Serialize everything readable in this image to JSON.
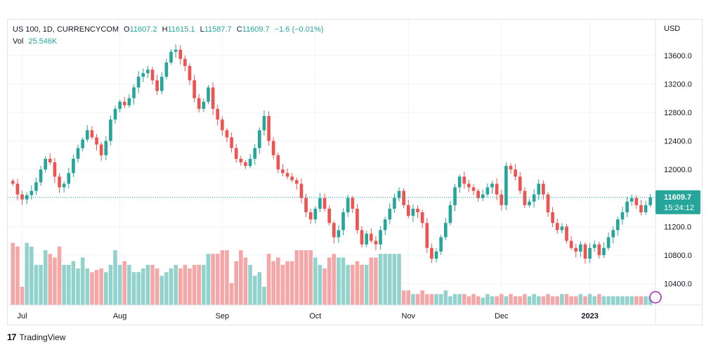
{
  "legend": {
    "symbol": "US 100, 1D, CURRENCYCOM",
    "open_label": "O",
    "open": "11607.2",
    "high_label": "H",
    "high": "11615.1",
    "low_label": "L",
    "low": "11587.7",
    "close_label": "C",
    "close": "11609.7",
    "change": "−1.6 (−0.01%)",
    "vol_label": "Vol",
    "vol": "25.546K"
  },
  "price_tag": {
    "price": "11609.7",
    "countdown": "15:24:12"
  },
  "branding": {
    "name": "TradingView"
  },
  "colors": {
    "up": "#26a69a",
    "down": "#ef5350",
    "up_vol": "#92d2cc",
    "down_vol": "#f5a6a6",
    "grid": "#f0f3fa",
    "axis_text": "#131722"
  },
  "chart_data": {
    "type": "candlestick",
    "y_axis": {
      "currency": "USD",
      "ticks": [
        10400,
        10800,
        11200,
        11600,
        12000,
        12400,
        12800,
        13200,
        13600
      ],
      "range": [
        10100,
        14100
      ],
      "position": "right"
    },
    "x_axis": {
      "labels": [
        {
          "text": "Jul",
          "index": 2
        },
        {
          "text": "Aug",
          "index": 23
        },
        {
          "text": "Sep",
          "index": 45
        },
        {
          "text": "Oct",
          "index": 65
        },
        {
          "text": "Nov",
          "index": 85
        },
        {
          "text": "Dec",
          "index": 105
        },
        {
          "text": "2023",
          "index": 124
        }
      ]
    },
    "grid": true,
    "last_close": 11609.7,
    "price_path": [
      11800,
      11650,
      11580,
      11640,
      11700,
      11820,
      12000,
      12150,
      12100,
      11900,
      11750,
      11800,
      11950,
      12150,
      12300,
      12420,
      12550,
      12450,
      12350,
      12200,
      12400,
      12700,
      12850,
      12950,
      12900,
      13000,
      13150,
      13300,
      13350,
      13400,
      13250,
      13100,
      13300,
      13500,
      13650,
      13680,
      13550,
      13450,
      13250,
      13000,
      12850,
      12950,
      13150,
      12850,
      12700,
      12550,
      12450,
      12300,
      12150,
      12100,
      12050,
      12150,
      12300,
      12550,
      12750,
      12400,
      12200,
      12000,
      11950,
      11900,
      11850,
      11800,
      11600,
      11400,
      11300,
      11450,
      11600,
      11450,
      11250,
      11050,
      11150,
      11400,
      11600,
      11450,
      11150,
      10950,
      11100,
      11000,
      10950,
      11150,
      11300,
      11450,
      11600,
      11700,
      11500,
      11350,
      11450,
      11400,
      11250,
      10900,
      10750,
      10850,
      11050,
      11250,
      11500,
      11750,
      11900,
      11800,
      11750,
      11700,
      11600,
      11650,
      11750,
      11800,
      11650,
      11500,
      12050,
      12000,
      11900,
      11700,
      11500,
      11550,
      11650,
      11800,
      11650,
      11400,
      11250,
      11150,
      11200,
      11000,
      10900,
      10850,
      10950,
      10750,
      10900,
      10950,
      10800,
      10900,
      11050,
      11150,
      11300,
      11400,
      11550,
      11600,
      11500,
      11400,
      11500,
      11609.7
    ],
    "volume_path": [
      0.85,
      0.8,
      0.25,
      0.85,
      0.8,
      0.55,
      0.55,
      0.75,
      0.7,
      0.65,
      0.8,
      0.55,
      0.55,
      0.6,
      0.5,
      0.65,
      0.5,
      0.45,
      0.48,
      0.5,
      0.45,
      0.55,
      0.75,
      0.55,
      0.6,
      0.55,
      0.45,
      0.45,
      0.5,
      0.55,
      0.55,
      0.5,
      0.4,
      0.45,
      0.5,
      0.55,
      0.5,
      0.55,
      0.5,
      0.55,
      0.55,
      0.55,
      0.7,
      0.7,
      0.7,
      0.75,
      0.75,
      0.3,
      0.6,
      0.75,
      0.65,
      0.55,
      0.4,
      0.45,
      0.25,
      0.7,
      0.6,
      0.65,
      0.55,
      0.6,
      0.6,
      0.75,
      0.75,
      0.75,
      0.75,
      0.65,
      0.55,
      0.5,
      0.65,
      0.7,
      0.65,
      0.65,
      0.55,
      0.55,
      0.6,
      0.55,
      0.55,
      0.65,
      0.65,
      0.7,
      0.7,
      0.7,
      0.7,
      0.7,
      0.2,
      0.2,
      0.15,
      0.15,
      0.2,
      0.15,
      0.15,
      0.15,
      0.15,
      0.2,
      0.12,
      0.15,
      0.15,
      0.15,
      0.12,
      0.15,
      0.12,
      0.1,
      0.15,
      0.12,
      0.12,
      0.15,
      0.12,
      0.15,
      0.12,
      0.12,
      0.15,
      0.12,
      0.15,
      0.12,
      0.12,
      0.15,
      0.12,
      0.12,
      0.15,
      0.15,
      0.12,
      0.12,
      0.15,
      0.12,
      0.15,
      0.12,
      0.15,
      0.12,
      0.12,
      0.12,
      0.12,
      0.12,
      0.12,
      0.12,
      0.12,
      0.12,
      0.12,
      0.12,
      0.12,
      0.12
    ]
  }
}
